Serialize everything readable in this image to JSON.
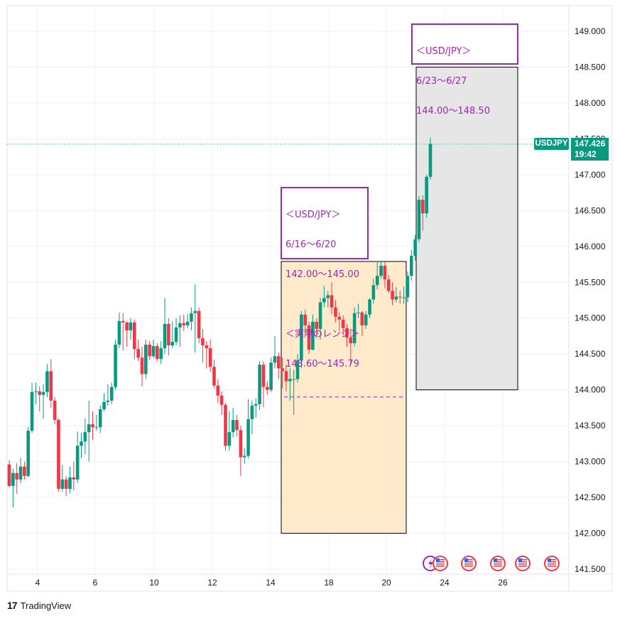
{
  "chart_data": {
    "type": "candlestick",
    "symbol": "USDJPY",
    "last_price": "147.426",
    "last_time": "19:42",
    "y_axis": {
      "ticks": [
        "149.000",
        "148.500",
        "148.000",
        "147.500",
        "147.000",
        "146.500",
        "146.000",
        "145.500",
        "145.000",
        "144.500",
        "144.000",
        "143.500",
        "143.000",
        "142.500",
        "142.000",
        "141.500"
      ],
      "ylim": [
        141.4,
        149.3
      ]
    },
    "x_axis": {
      "ticks": [
        "4",
        "6",
        "10",
        "12",
        "14",
        "18",
        "20",
        "24",
        "26"
      ]
    },
    "grid": true,
    "candles": [
      [
        142.96,
        142.66,
        143.02,
        142.64
      ],
      [
        142.66,
        142.84,
        142.9,
        142.36
      ],
      [
        142.84,
        142.75,
        142.98,
        142.55
      ],
      [
        142.75,
        142.93,
        143.05,
        142.7
      ],
      [
        142.93,
        142.8,
        143.0,
        142.75
      ],
      [
        142.8,
        143.43,
        143.48,
        142.78
      ],
      [
        143.43,
        143.97,
        144.1,
        143.4
      ],
      [
        143.97,
        143.98,
        144.1,
        143.8
      ],
      [
        143.98,
        143.93,
        144.05,
        143.7
      ],
      [
        143.93,
        143.97,
        144.08,
        143.6
      ],
      [
        143.97,
        144.26,
        144.36,
        143.9
      ],
      [
        144.26,
        143.85,
        144.43,
        143.75
      ],
      [
        143.85,
        143.58,
        143.9,
        143.52
      ],
      [
        143.58,
        142.62,
        143.6,
        142.58
      ],
      [
        142.62,
        142.75,
        142.95,
        142.58
      ],
      [
        142.75,
        142.62,
        142.8,
        142.52
      ],
      [
        142.62,
        142.78,
        142.93,
        142.56
      ],
      [
        142.78,
        142.75,
        143.0,
        142.6
      ],
      [
        142.75,
        143.22,
        143.42,
        142.7
      ],
      [
        143.22,
        143.28,
        143.4,
        143.05
      ],
      [
        143.28,
        143.41,
        143.6,
        143.1
      ],
      [
        143.41,
        143.52,
        143.85,
        143.0
      ],
      [
        143.52,
        143.48,
        143.7,
        143.3
      ],
      [
        143.48,
        143.48,
        143.65,
        143.43
      ],
      [
        143.48,
        143.73,
        143.78,
        143.4
      ],
      [
        143.73,
        143.83,
        143.95,
        143.7
      ],
      [
        143.83,
        143.85,
        144.08,
        143.78
      ],
      [
        143.85,
        144.04,
        144.1,
        143.8
      ],
      [
        144.04,
        144.63,
        144.7,
        144.0
      ],
      [
        144.63,
        144.96,
        145.08,
        144.58
      ],
      [
        144.96,
        144.94,
        145.07,
        144.55
      ],
      [
        144.94,
        144.83,
        144.95,
        144.6
      ],
      [
        144.83,
        144.94,
        145.0,
        144.7
      ],
      [
        144.94,
        144.57,
        144.98,
        144.43
      ],
      [
        144.57,
        144.45,
        144.7,
        144.4
      ],
      [
        144.45,
        144.22,
        144.6,
        144.05
      ],
      [
        144.22,
        144.63,
        144.7,
        144.15
      ],
      [
        144.63,
        144.47,
        144.68,
        144.42
      ],
      [
        144.47,
        144.61,
        144.7,
        144.44
      ],
      [
        144.61,
        144.43,
        144.65,
        144.4
      ],
      [
        144.43,
        144.58,
        144.68,
        144.36
      ],
      [
        144.58,
        144.92,
        145.28,
        144.5
      ],
      [
        144.92,
        144.62,
        145.0,
        144.48
      ],
      [
        144.62,
        144.67,
        144.95,
        144.58
      ],
      [
        144.67,
        144.87,
        145.0,
        144.62
      ],
      [
        144.87,
        144.93,
        145.04,
        144.6
      ],
      [
        144.93,
        144.9,
        145.05,
        144.82
      ],
      [
        144.9,
        144.95,
        145.06,
        144.86
      ],
      [
        144.95,
        145.07,
        145.15,
        144.83
      ],
      [
        145.07,
        145.1,
        145.47,
        144.52
      ],
      [
        145.1,
        144.72,
        145.15,
        144.65
      ],
      [
        144.72,
        144.62,
        144.85,
        144.38
      ],
      [
        144.62,
        144.58,
        144.68,
        144.3
      ],
      [
        144.58,
        144.32,
        144.7,
        144.25
      ],
      [
        144.32,
        144.06,
        144.42,
        144.02
      ],
      [
        144.06,
        143.92,
        144.15,
        143.82
      ],
      [
        143.92,
        143.79,
        143.98,
        143.65
      ],
      [
        143.79,
        143.22,
        143.82,
        143.15
      ],
      [
        143.22,
        143.41,
        143.7,
        143.15
      ],
      [
        143.41,
        143.58,
        143.75,
        143.34
      ],
      [
        143.58,
        143.44,
        143.65,
        143.35
      ],
      [
        143.44,
        143.06,
        143.5,
        142.8
      ],
      [
        143.06,
        143.08,
        143.19,
        142.97
      ],
      [
        143.08,
        143.59,
        143.87,
        143.04
      ],
      [
        143.59,
        143.78,
        143.85,
        143.38
      ],
      [
        143.78,
        143.8,
        143.88,
        143.61
      ],
      [
        143.8,
        144.35,
        144.4,
        143.72
      ],
      [
        144.35,
        144.04,
        144.4,
        143.76
      ],
      [
        144.04,
        144.0,
        144.12,
        143.93
      ],
      [
        144.0,
        144.38,
        144.45,
        143.97
      ],
      [
        144.38,
        144.47,
        144.75,
        144.3
      ],
      [
        144.47,
        144.3,
        144.52,
        144.15
      ],
      [
        144.3,
        144.26,
        144.45,
        144.02
      ],
      [
        144.26,
        144.12,
        144.35,
        143.98
      ],
      [
        144.12,
        144.15,
        144.3,
        143.85
      ],
      [
        144.15,
        144.15,
        144.28,
        143.65
      ],
      [
        144.15,
        144.41,
        144.5,
        144.1
      ],
      [
        144.41,
        145.05,
        145.1,
        144.3
      ],
      [
        145.05,
        144.9,
        145.12,
        144.8
      ],
      [
        144.9,
        144.56,
        144.95,
        144.5
      ],
      [
        144.56,
        144.95,
        145.05,
        144.55
      ],
      [
        144.95,
        144.85,
        145.0,
        144.72
      ],
      [
        144.85,
        145.22,
        145.28,
        144.7
      ],
      [
        145.22,
        145.28,
        145.45,
        145.15
      ],
      [
        145.28,
        145.32,
        145.38,
        145.15
      ],
      [
        145.32,
        145.15,
        145.5,
        145.05
      ],
      [
        145.15,
        145.02,
        145.25,
        144.94
      ],
      [
        145.02,
        144.98,
        145.08,
        144.82
      ],
      [
        144.98,
        144.86,
        145.04,
        144.76
      ],
      [
        144.86,
        144.73,
        144.92,
        144.6
      ],
      [
        144.73,
        144.65,
        144.85,
        144.36
      ],
      [
        144.65,
        145.07,
        145.15,
        144.6
      ],
      [
        145.07,
        145.08,
        145.2,
        145.0
      ],
      [
        145.08,
        144.9,
        145.1,
        144.75
      ],
      [
        144.9,
        145.05,
        145.1,
        144.85
      ],
      [
        145.05,
        145.26,
        145.28,
        145.0
      ],
      [
        145.26,
        145.46,
        145.55,
        145.2
      ],
      [
        145.46,
        145.59,
        145.78,
        145.4
      ],
      [
        145.59,
        145.73,
        145.79,
        145.55
      ],
      [
        145.73,
        145.54,
        145.8,
        145.42
      ],
      [
        145.54,
        145.38,
        145.6,
        145.35
      ],
      [
        145.38,
        145.26,
        145.5,
        145.18
      ],
      [
        145.26,
        145.3,
        145.43,
        145.22
      ],
      [
        145.3,
        145.29,
        145.38,
        145.2
      ],
      [
        145.29,
        145.29,
        145.44,
        145.2
      ],
      [
        145.29,
        145.59,
        145.65,
        145.22
      ],
      [
        145.59,
        145.87,
        145.95,
        145.52
      ],
      [
        145.87,
        146.1,
        146.16,
        145.8
      ],
      [
        146.1,
        146.65,
        146.7,
        146.06
      ],
      [
        146.65,
        146.46,
        146.71,
        146.22
      ],
      [
        146.46,
        146.97,
        147.0,
        146.4
      ],
      [
        146.97,
        147.43,
        147.52,
        146.93
      ]
    ],
    "ranges": [
      {
        "label": [
          "＜USD/JPY＞",
          "6/16～6/20",
          "142.00～145.00",
          "",
          "＜実際のレンジ＞",
          "143.60～145.79"
        ],
        "low": 142.0,
        "high": 145.79,
        "dashed": 143.9
      },
      {
        "label": [
          "＜USD/JPY＞",
          "6/23～6/27",
          "144.00～148.50"
        ],
        "low": 144.0,
        "high": 148.5
      }
    ],
    "event_icons": 6
  },
  "colors": {
    "up": "#089981",
    "down": "#f23645",
    "grid": "#eef0f3",
    "axis_text": "#131722",
    "annotation": "#9c27b0",
    "range1_fill": "#ffebcc",
    "range2_fill": "#e6e6e6"
  },
  "footer": {
    "brand": "TradingView"
  }
}
